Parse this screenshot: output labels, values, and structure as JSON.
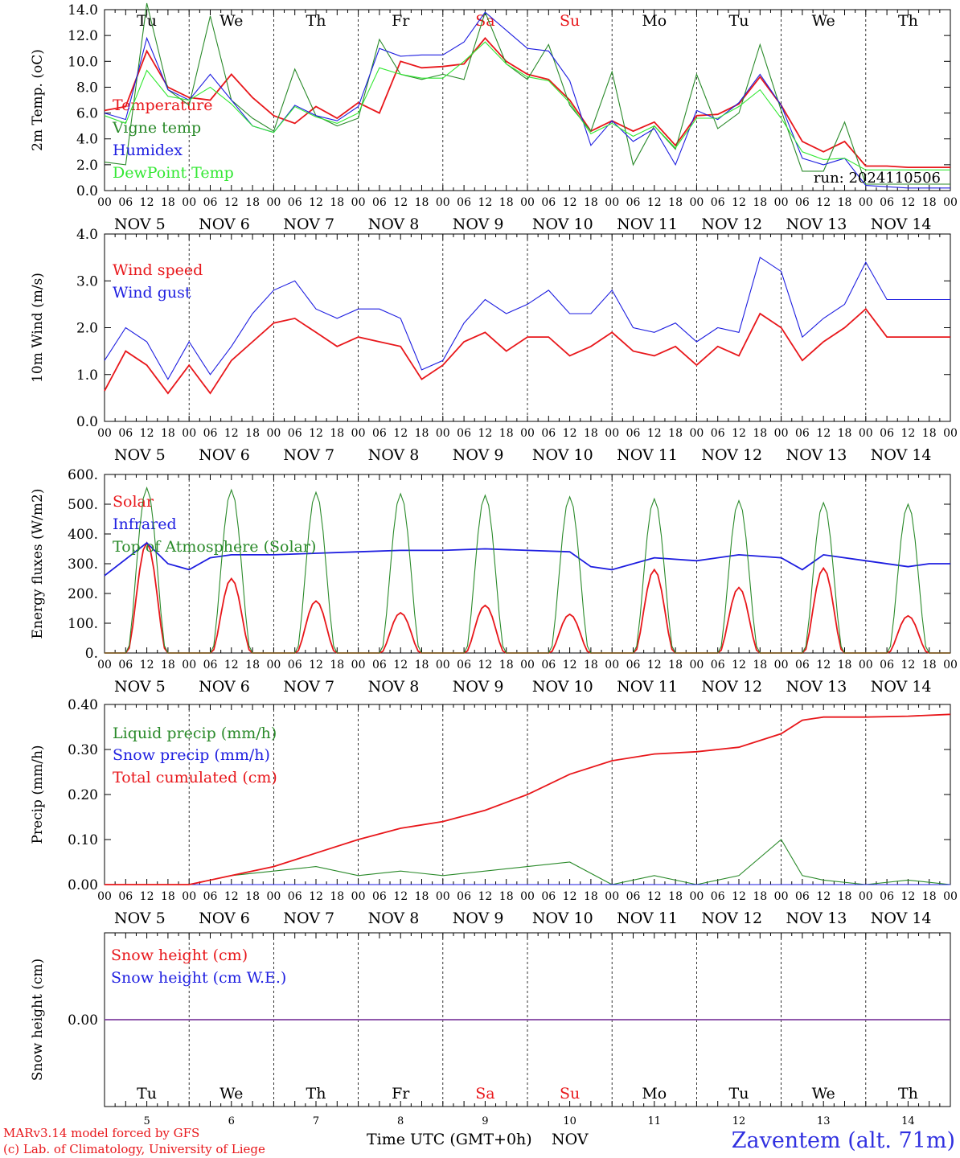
{
  "footer": {
    "credit_line1": "MARv3.14 model forced by GFS",
    "credit_line2": "(c) Lab. of Climatology, University of Liege",
    "time_label": "Time UTC (GMT+0h)",
    "month_label": "NOV",
    "station": "Zaventem (alt. 71m)"
  },
  "colors": {
    "red": "#e8171b",
    "green": "#2a8a2a",
    "blue": "#1e1ee0",
    "lightgreen": "#33e833",
    "purple": "#8040a0"
  },
  "days": [
    "Tu",
    "We",
    "Th",
    "Fr",
    "Sa",
    "Su",
    "Mo",
    "Tu",
    "We",
    "Th"
  ],
  "weekend_days": [
    4,
    5
  ],
  "dates": [
    "NOV  5",
    "NOV  6",
    "NOV  7",
    "NOV  8",
    "NOV  9",
    "NOV 10",
    "NOV 11",
    "NOV 12",
    "NOV 13",
    "NOV 14"
  ],
  "date_numbers": [
    "5",
    "6",
    "7",
    "8",
    "9",
    "10",
    "11",
    "12",
    "13",
    "14"
  ],
  "hour_ticks": [
    "00",
    "06",
    "12",
    "18"
  ],
  "chart_data": [
    {
      "type": "line",
      "ylabel": "2m Temp. (oC)",
      "ylim": [
        0,
        14
      ],
      "yticks": [
        "0.0",
        "2.0",
        "4.0",
        "6.0",
        "8.0",
        "10.0",
        "12.0",
        "14.0"
      ],
      "run_label": "run: 2024110506",
      "x_hours": [
        0,
        6,
        12,
        18,
        24,
        30,
        36,
        42,
        48,
        54,
        60,
        66,
        72,
        78,
        84,
        90,
        96,
        102,
        108,
        114,
        120,
        126,
        132,
        138,
        144,
        150,
        156,
        162,
        168,
        174,
        180,
        186,
        192,
        198,
        204,
        210,
        216,
        222,
        228,
        234,
        240
      ],
      "series": [
        {
          "name": "Temperature",
          "color": "red",
          "values": [
            6.2,
            6.5,
            10.8,
            8.0,
            7.2,
            7.0,
            9.0,
            7.2,
            5.8,
            5.2,
            6.5,
            5.6,
            6.8,
            6.0,
            10.0,
            9.5,
            9.6,
            9.8,
            11.8,
            10.0,
            9.0,
            8.6,
            7.0,
            4.6,
            5.4,
            4.6,
            5.3,
            3.5,
            5.8,
            5.9,
            6.7,
            8.8,
            6.6,
            3.8,
            3.0,
            3.8,
            1.9,
            1.9,
            1.8,
            1.8,
            1.8
          ]
        },
        {
          "name": "Vigne temp",
          "color": "green",
          "values": [
            2.2,
            2.0,
            14.5,
            7.8,
            6.6,
            13.5,
            7.0,
            5.6,
            4.6,
            9.4,
            5.8,
            5.0,
            5.6,
            11.7,
            9.0,
            8.6,
            9.0,
            8.6,
            13.8,
            9.8,
            8.6,
            11.3,
            6.6,
            4.6,
            9.2,
            2.0,
            5.0,
            3.2,
            9.0,
            4.8,
            6.0,
            11.3,
            6.2,
            1.5,
            1.5,
            5.3,
            0.5,
            0.5,
            0.5,
            0.5,
            0.5
          ]
        },
        {
          "name": "Humidex",
          "color": "blue",
          "values": [
            6.0,
            5.5,
            11.8,
            7.8,
            7.0,
            9.0,
            7.0,
            5.0,
            4.5,
            6.6,
            5.8,
            5.4,
            6.5,
            11.0,
            10.4,
            10.5,
            10.5,
            11.5,
            13.8,
            12.4,
            11.0,
            10.8,
            8.5,
            3.5,
            5.4,
            3.8,
            4.8,
            2.0,
            6.2,
            5.5,
            6.8,
            9.0,
            6.6,
            2.5,
            2.0,
            2.5,
            0.4,
            0.3,
            0.2,
            0.2,
            0.2
          ]
        },
        {
          "name": "DewPoint Temp",
          "color": "lightgreen",
          "values": [
            5.8,
            5.2,
            9.3,
            7.3,
            7.0,
            8.0,
            6.7,
            5.0,
            4.5,
            6.5,
            5.7,
            5.2,
            6.0,
            9.5,
            9.0,
            8.7,
            8.7,
            10.0,
            11.5,
            9.8,
            8.8,
            8.5,
            6.8,
            4.4,
            5.2,
            4.2,
            5.0,
            3.3,
            5.6,
            5.6,
            6.5,
            7.8,
            5.6,
            3.0,
            2.4,
            2.5,
            1.6,
            1.6,
            1.6,
            1.6,
            1.6
          ]
        }
      ]
    },
    {
      "type": "line",
      "ylabel": "10m Wind (m/s)",
      "ylim": [
        0,
        4
      ],
      "yticks": [
        "0.0",
        "1.0",
        "2.0",
        "3.0",
        "4.0"
      ],
      "x_hours": [
        0,
        6,
        12,
        18,
        24,
        30,
        36,
        42,
        48,
        54,
        60,
        66,
        72,
        78,
        84,
        90,
        96,
        102,
        108,
        114,
        120,
        126,
        132,
        138,
        144,
        150,
        156,
        162,
        168,
        174,
        180,
        186,
        192,
        198,
        204,
        210,
        216,
        222,
        228,
        234,
        240
      ],
      "series": [
        {
          "name": "Wind speed",
          "color": "red",
          "values": [
            0.65,
            1.5,
            1.2,
            0.6,
            1.2,
            0.6,
            1.3,
            1.7,
            2.1,
            2.2,
            1.9,
            1.6,
            1.8,
            1.7,
            1.6,
            0.9,
            1.2,
            1.7,
            1.9,
            1.5,
            1.8,
            1.8,
            1.4,
            1.6,
            1.9,
            1.5,
            1.4,
            1.6,
            1.2,
            1.6,
            1.4,
            2.3,
            2.0,
            1.3,
            1.7,
            2.0,
            2.4,
            1.8,
            1.8,
            1.8,
            1.8
          ]
        },
        {
          "name": "Wind gust",
          "color": "blue",
          "values": [
            1.3,
            2.0,
            1.7,
            0.9,
            1.7,
            1.0,
            1.6,
            2.3,
            2.8,
            3.0,
            2.4,
            2.2,
            2.4,
            2.4,
            2.2,
            1.1,
            1.3,
            2.1,
            2.6,
            2.3,
            2.5,
            2.8,
            2.3,
            2.3,
            2.8,
            2.0,
            1.9,
            2.1,
            1.7,
            2.0,
            1.9,
            3.5,
            3.2,
            1.8,
            2.2,
            2.5,
            3.4,
            2.6,
            2.6,
            2.6,
            2.6
          ]
        }
      ]
    },
    {
      "type": "line",
      "ylabel": "Energy fluxes (W/m2)",
      "ylim": [
        0,
        600
      ],
      "yticks": [
        "0.",
        "100.",
        "200.",
        "300.",
        "400.",
        "500.",
        "600."
      ],
      "series": [
        {
          "name": "Solar",
          "color": "red",
          "peaks": [
            370,
            250,
            175,
            135,
            160,
            130,
            280,
            220,
            285,
            125
          ]
        },
        {
          "name": "Infrared",
          "color": "blue",
          "x_hours": [
            0,
            12,
            18,
            24,
            30,
            36,
            48,
            60,
            72,
            84,
            96,
            108,
            120,
            132,
            138,
            144,
            156,
            168,
            180,
            192,
            198,
            204,
            216,
            228,
            234,
            240
          ],
          "values": [
            260,
            370,
            300,
            280,
            320,
            330,
            330,
            335,
            340,
            345,
            345,
            350,
            345,
            340,
            290,
            280,
            320,
            310,
            330,
            320,
            280,
            330,
            310,
            290,
            300,
            300
          ]
        },
        {
          "name": "Top of Atmosphere (Solar)",
          "color": "green",
          "peaks": [
            555,
            548,
            540,
            535,
            530,
            525,
            518,
            512,
            505,
            500
          ]
        }
      ]
    },
    {
      "type": "line",
      "ylabel": "Precip (mm/h)",
      "ylim": [
        0,
        0.4
      ],
      "yticks": [
        "0.00",
        "0.10",
        "0.20",
        "0.30",
        "0.40"
      ],
      "x_hours": [
        0,
        24,
        36,
        48,
        60,
        72,
        84,
        96,
        108,
        120,
        132,
        144,
        156,
        168,
        180,
        192,
        198,
        204,
        216,
        228,
        240
      ],
      "series": [
        {
          "name": "Liquid precip (mm/h)",
          "color": "green",
          "values": [
            0,
            0,
            0.02,
            0.03,
            0.04,
            0.02,
            0.03,
            0.02,
            0.03,
            0.04,
            0.05,
            0.0,
            0.02,
            0.0,
            0.02,
            0.1,
            0.02,
            0.01,
            0.0,
            0.01,
            0.0
          ]
        },
        {
          "name": "Snow precip (mm/h)",
          "color": "blue",
          "values": [
            0,
            0,
            0,
            0,
            0,
            0,
            0,
            0,
            0,
            0,
            0,
            0,
            0,
            0,
            0,
            0,
            0,
            0,
            0,
            0,
            0
          ]
        },
        {
          "name": "Total cumulated (cm)",
          "color": "red",
          "values": [
            0,
            0,
            0.02,
            0.04,
            0.07,
            0.1,
            0.125,
            0.14,
            0.165,
            0.2,
            0.245,
            0.275,
            0.29,
            0.295,
            0.305,
            0.335,
            0.365,
            0.372,
            0.372,
            0.374,
            0.378
          ]
        }
      ]
    },
    {
      "type": "line",
      "ylabel": "Snow height (cm)",
      "ylim": [
        -1,
        1
      ],
      "yticks": [
        "0.00"
      ],
      "series": [
        {
          "name": "Snow height (cm)",
          "color": "red",
          "values": [
            0,
            0
          ]
        },
        {
          "name": "Snow height (cm W.E.)",
          "color": "blue",
          "values": [
            0,
            0
          ]
        }
      ]
    }
  ]
}
